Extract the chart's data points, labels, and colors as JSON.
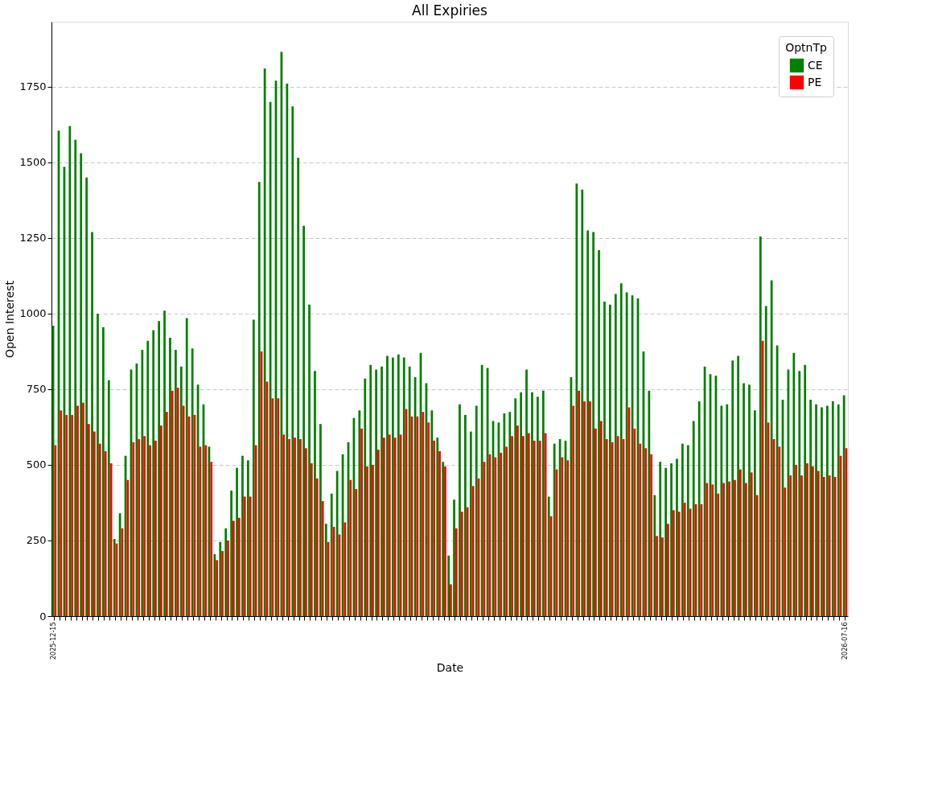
{
  "chart_data": {
    "type": "bar",
    "title": "All Expiries",
    "xlabel": "Date",
    "ylabel": "Open Interest",
    "legend_title": "OptnTp",
    "categories": [
      "2025-12-15",
      null,
      null,
      null,
      null,
      null,
      null,
      null,
      null,
      null,
      null,
      null,
      null,
      null,
      null,
      null,
      null,
      null,
      null,
      null,
      null,
      null,
      null,
      null,
      null,
      null,
      null,
      null,
      null,
      null,
      null,
      null,
      null,
      null,
      null,
      null,
      null,
      null,
      null,
      null,
      null,
      null,
      null,
      null,
      null,
      null,
      null,
      null,
      null,
      null,
      null,
      null,
      null,
      null,
      null,
      null,
      null,
      null,
      null,
      null,
      null,
      null,
      null,
      null,
      null,
      null,
      null,
      null,
      null,
      null,
      null,
      null,
      null,
      null,
      null,
      null,
      null,
      null,
      null,
      null,
      null,
      null,
      null,
      null,
      null,
      null,
      null,
      null,
      null,
      null,
      null,
      null,
      null,
      null,
      null,
      null,
      null,
      null,
      null,
      null,
      null,
      null,
      null,
      null,
      null,
      null,
      null,
      null,
      null,
      null,
      null,
      null,
      null,
      null,
      null,
      null,
      null,
      null,
      null,
      null,
      null,
      null,
      null,
      null,
      null,
      null,
      null,
      null,
      null,
      null,
      null,
      null,
      null,
      null,
      null,
      null,
      null,
      null,
      null,
      null,
      null,
      null,
      "2026-07-16"
    ],
    "series": [
      {
        "name": "CE",
        "color": "#008000",
        "values": [
          960,
          1605,
          1485,
          1620,
          1575,
          1530,
          1450,
          1270,
          1000,
          955,
          780,
          255,
          340,
          530,
          815,
          835,
          880,
          910,
          945,
          975,
          1010,
          920,
          880,
          825,
          985,
          885,
          765,
          700,
          560,
          205,
          245,
          290,
          415,
          490,
          530,
          515,
          980,
          1435,
          1810,
          1700,
          1770,
          1865,
          1760,
          1685,
          1515,
          1290,
          1030,
          810,
          635,
          305,
          405,
          480,
          535,
          575,
          655,
          680,
          785,
          830,
          815,
          825,
          860,
          855,
          865,
          855,
          825,
          790,
          870,
          770,
          680,
          590,
          510,
          200,
          385,
          700,
          665,
          610,
          695,
          830,
          820,
          645,
          640,
          670,
          675,
          720,
          740,
          815,
          740,
          725,
          745,
          395,
          570,
          585,
          580,
          790,
          1430,
          1410,
          1275,
          1270,
          1210,
          1040,
          1030,
          1065,
          1100,
          1070,
          1060,
          1050,
          875,
          745,
          400,
          510,
          490,
          505,
          520,
          570,
          565,
          645,
          710,
          825,
          800,
          795,
          695,
          700,
          845,
          860,
          770,
          765,
          680,
          1255,
          1025,
          1110,
          895,
          715,
          815,
          870,
          810,
          830,
          715,
          700,
          690,
          695,
          710,
          700,
          730
        ]
      },
      {
        "name": "PE",
        "color": "#ff0000",
        "values": [
          565,
          680,
          665,
          665,
          695,
          705,
          635,
          610,
          570,
          545,
          505,
          240,
          290,
          450,
          575,
          585,
          595,
          565,
          580,
          630,
          675,
          745,
          755,
          695,
          660,
          665,
          560,
          565,
          510,
          185,
          215,
          250,
          315,
          325,
          395,
          395,
          565,
          875,
          775,
          720,
          720,
          600,
          585,
          590,
          585,
          555,
          505,
          455,
          380,
          245,
          295,
          270,
          310,
          450,
          420,
          620,
          495,
          500,
          550,
          590,
          600,
          590,
          600,
          685,
          660,
          660,
          675,
          640,
          580,
          545,
          495,
          105,
          290,
          345,
          360,
          430,
          455,
          510,
          535,
          525,
          540,
          560,
          595,
          630,
          595,
          605,
          580,
          580,
          605,
          330,
          485,
          525,
          515,
          695,
          745,
          710,
          710,
          620,
          645,
          585,
          575,
          595,
          585,
          690,
          620,
          570,
          555,
          535,
          265,
          260,
          305,
          350,
          345,
          375,
          355,
          370,
          370,
          440,
          435,
          405,
          440,
          445,
          450,
          485,
          440,
          475,
          400,
          910,
          640,
          585,
          560,
          425,
          465,
          500,
          465,
          505,
          495,
          480,
          460,
          465,
          460,
          530,
          555
        ]
      }
    ],
    "ylim": [
      0,
      1965
    ],
    "yticks": [
      0,
      250,
      500,
      750,
      1000,
      1250,
      1500,
      1750
    ],
    "grid": "y",
    "legend": "top right"
  }
}
